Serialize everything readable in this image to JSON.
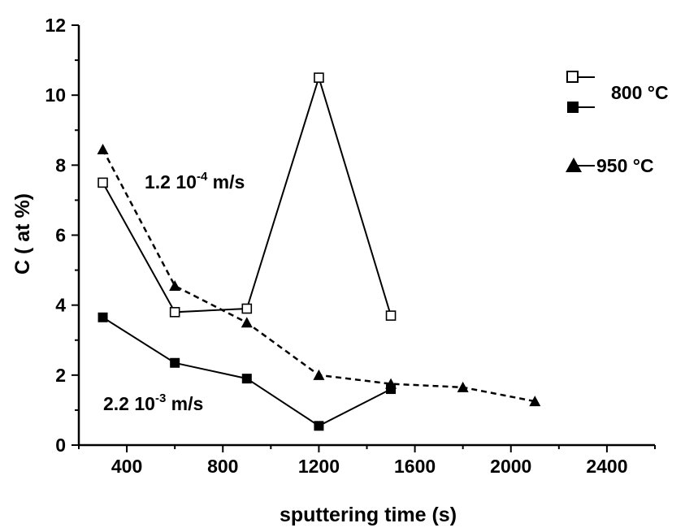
{
  "chart_data": {
    "type": "line",
    "xlabel": "sputtering time (s)",
    "ylabel": "C ( at %)",
    "xlim": [
      200,
      2600
    ],
    "ylim": [
      0,
      12
    ],
    "x_ticks": [
      400,
      800,
      1200,
      1600,
      2000,
      2400
    ],
    "y_ticks": [
      0,
      2,
      4,
      6,
      8,
      10,
      12
    ],
    "series": [
      {
        "name": "800 °C (1.2 10⁻⁴ m/s)",
        "marker": "open-square",
        "line": "solid",
        "points": [
          {
            "x": 300,
            "y": 7.5
          },
          {
            "x": 600,
            "y": 3.8
          },
          {
            "x": 900,
            "y": 3.9
          },
          {
            "x": 1200,
            "y": 10.5
          },
          {
            "x": 1500,
            "y": 3.7
          }
        ]
      },
      {
        "name": "800 °C (2.2 10⁻³ m/s)",
        "marker": "filled-square",
        "line": "solid",
        "points": [
          {
            "x": 300,
            "y": 3.65
          },
          {
            "x": 600,
            "y": 2.35
          },
          {
            "x": 900,
            "y": 1.9
          },
          {
            "x": 1200,
            "y": 0.55
          },
          {
            "x": 1500,
            "y": 1.6
          }
        ]
      },
      {
        "name": "950 °C",
        "marker": "filled-triangle",
        "line": "dashed",
        "points": [
          {
            "x": 300,
            "y": 8.45
          },
          {
            "x": 600,
            "y": 4.55
          },
          {
            "x": 900,
            "y": 3.5
          },
          {
            "x": 1200,
            "y": 2.0
          },
          {
            "x": 1500,
            "y": 1.75
          },
          {
            "x": 1800,
            "y": 1.65
          },
          {
            "x": 2100,
            "y": 1.25
          }
        ]
      }
    ],
    "annotations": {
      "upper": {
        "base": "1.2 10",
        "exp": "-4",
        "unit": " m/s"
      },
      "lower": {
        "base": "2.2 10",
        "exp": "-3",
        "unit": " m/s"
      }
    },
    "legend": {
      "position": "top-right",
      "label_800": "800 °C",
      "label_950": "950 °C"
    }
  }
}
